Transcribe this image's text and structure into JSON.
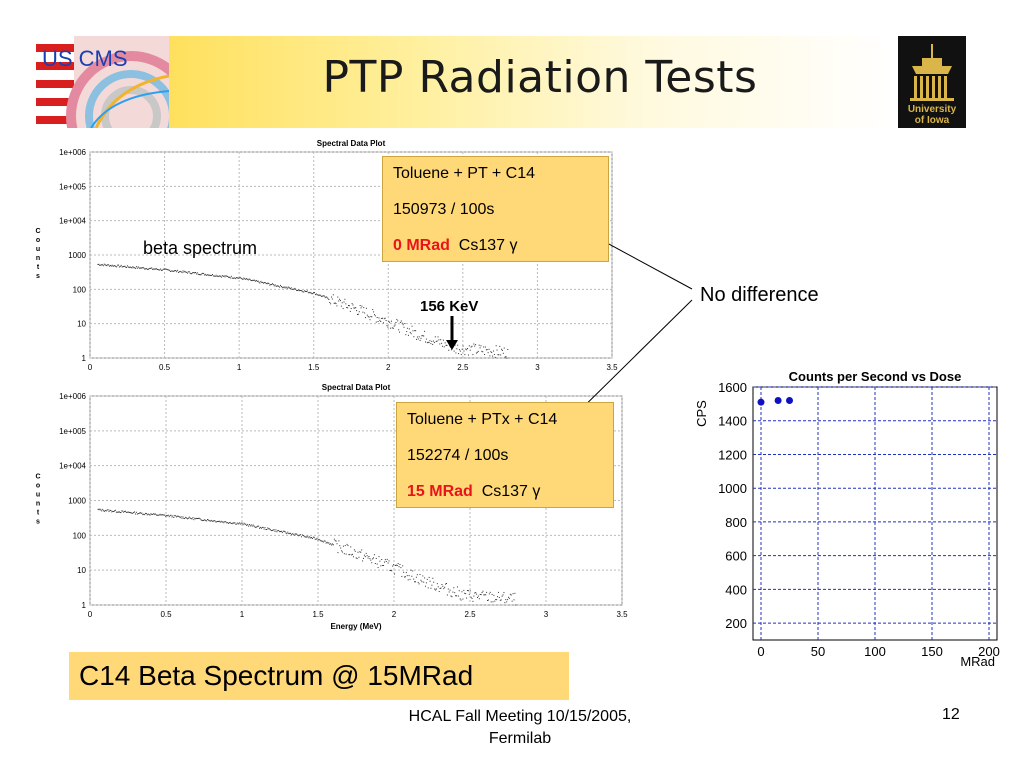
{
  "slide": {
    "title": "PTP Radiation Tests",
    "footer": {
      "line1": "HCAL Fall Meeting 10/15/2005,",
      "line2": "Fermilab"
    },
    "page_number": "12",
    "conclusion": "C14 Beta Spectrum @ 15MRad",
    "no_difference": "No  difference",
    "beta_label": "beta spectrum",
    "kev_label": "156 KeV"
  },
  "logos": {
    "uscms_text": "US CMS",
    "iowa_text": [
      "University",
      "of Iowa"
    ]
  },
  "box_top": {
    "line1": "Toluene + PT + C14",
    "line2": "150973 /  100s",
    "dose": "0 MRad",
    "source": "Cs137 γ"
  },
  "box_bottom": {
    "line1": "Toluene + PTx + C14",
    "line2": "152274 / 100s",
    "dose": "15 MRad",
    "source": "Cs137 γ"
  },
  "colors": {
    "accent": "#ffd877",
    "red": "#e8141b",
    "blue_points": "#1010c0"
  },
  "chart_data": [
    {
      "type": "scatter",
      "title": "Spectral Data Plot",
      "ylabel": "Counts",
      "xlim": [
        0,
        3.5
      ],
      "yscale": "log",
      "ylim": [
        1,
        1000000
      ],
      "x_ticks": [
        "0",
        "0.5",
        "1",
        "1.5",
        "2",
        "2.5",
        "3",
        "3.5"
      ],
      "y_ticks": [
        "1",
        "10",
        "100",
        "1000",
        "1e+004",
        "1e+005",
        "1e+006"
      ],
      "series": [
        {
          "x": [
            0.05,
            0.5,
            1.0,
            1.5,
            2.0,
            2.2,
            2.45,
            2.8
          ],
          "y": [
            550,
            380,
            220,
            80,
            12,
            5,
            2,
            1.5
          ]
        }
      ]
    },
    {
      "type": "scatter",
      "title": "Spectral Data Plot",
      "xlabel": "Energy (MeV)",
      "ylabel": "Counts",
      "xlim": [
        0,
        3.5
      ],
      "yscale": "log",
      "ylim": [
        1,
        1000000
      ],
      "x_ticks": [
        "0",
        "0.5",
        "1",
        "1.5",
        "2",
        "2.5",
        "3",
        "3.5"
      ],
      "y_ticks": [
        "1",
        "10",
        "100",
        "1000",
        "1e+004",
        "1e+005",
        "1e+006"
      ],
      "series": [
        {
          "x": [
            0.05,
            0.5,
            1.0,
            1.5,
            2.0,
            2.2,
            2.45,
            2.8
          ],
          "y": [
            560,
            380,
            220,
            80,
            12,
            5,
            2,
            1.5
          ]
        }
      ]
    },
    {
      "type": "scatter",
      "title": "Counts per Second vs Dose",
      "xlabel": "MRad",
      "ylabel": "CPS",
      "xlim": [
        0,
        200
      ],
      "ylim": [
        100,
        1600
      ],
      "x_ticks": [
        "0",
        "50",
        "100",
        "150",
        "200"
      ],
      "y_ticks": [
        "200",
        "400",
        "600",
        "800",
        "1000",
        "1200",
        "1400",
        "1600"
      ],
      "series": [
        {
          "x": [
            0,
            15,
            25
          ],
          "y": [
            1510,
            1520,
            1520
          ]
        }
      ]
    }
  ]
}
